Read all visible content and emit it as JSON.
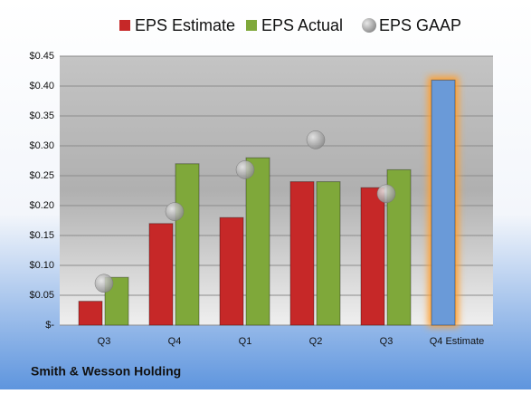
{
  "chart_data": {
    "type": "bar",
    "footer": "Smith & Wesson Holding",
    "categories": [
      "Q3",
      "Q4",
      "Q1",
      "Q2",
      "Q3",
      "Q4 Estimate"
    ],
    "series": [
      {
        "name": "EPS Estimate",
        "color": "#c62828",
        "values": [
          0.04,
          0.17,
          0.18,
          0.24,
          0.23,
          0.41
        ],
        "point_colors": [
          "#c62828",
          "#c62828",
          "#c62828",
          "#c62828",
          "#c62828",
          "#6a9ad8"
        ]
      },
      {
        "name": "EPS Actual",
        "color": "#7fa83a",
        "values": [
          0.08,
          0.27,
          0.28,
          0.24,
          0.26,
          null
        ]
      },
      {
        "name": "EPS GAAP",
        "color": "#a8a8a8",
        "marker": "circle",
        "values": [
          0.07,
          0.19,
          0.26,
          0.31,
          0.22,
          null
        ]
      }
    ],
    "ylim": [
      0,
      0.45
    ],
    "yticks": [
      {
        "value": 0,
        "label": "$-"
      },
      {
        "value": 0.05,
        "label": "$0.05"
      },
      {
        "value": 0.1,
        "label": "$0.10"
      },
      {
        "value": 0.15,
        "label": "$0.15"
      },
      {
        "value": 0.2,
        "label": "$0.20"
      },
      {
        "value": 0.25,
        "label": "$0.25"
      },
      {
        "value": 0.3,
        "label": "$0.30"
      },
      {
        "value": 0.35,
        "label": "$0.35"
      },
      {
        "value": 0.4,
        "label": "$0.40"
      },
      {
        "value": 0.45,
        "label": "$0.45"
      }
    ],
    "grid": true
  }
}
